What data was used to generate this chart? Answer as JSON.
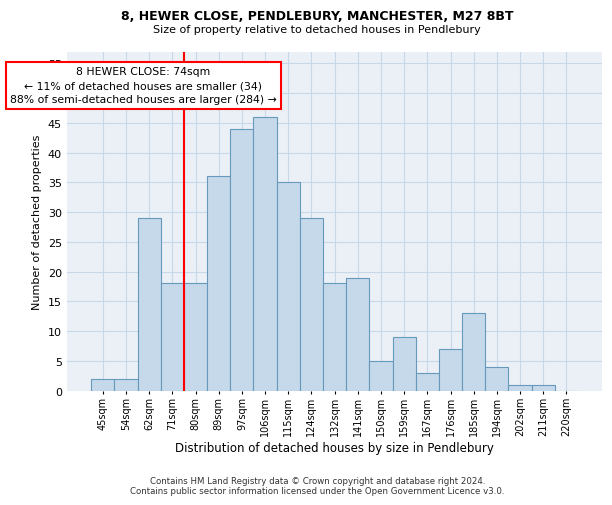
{
  "title1": "8, HEWER CLOSE, PENDLEBURY, MANCHESTER, M27 8BT",
  "title2": "Size of property relative to detached houses in Pendlebury",
  "xlabel": "Distribution of detached houses by size in Pendlebury",
  "ylabel": "Number of detached properties",
  "categories": [
    "45sqm",
    "54sqm",
    "62sqm",
    "71sqm",
    "80sqm",
    "89sqm",
    "97sqm",
    "106sqm",
    "115sqm",
    "124sqm",
    "132sqm",
    "141sqm",
    "150sqm",
    "159sqm",
    "167sqm",
    "176sqm",
    "185sqm",
    "194sqm",
    "202sqm",
    "211sqm",
    "220sqm"
  ],
  "values": [
    2,
    2,
    29,
    18,
    18,
    36,
    44,
    46,
    35,
    29,
    18,
    19,
    5,
    9,
    3,
    7,
    13,
    4,
    1,
    1,
    0
  ],
  "bar_color": "#c6d9ea",
  "bar_edge_color": "#6699bb",
  "red_line_x": 3.5,
  "annotation_line1": "8 HEWER CLOSE: 74sqm",
  "annotation_line2": "← 11% of detached houses are smaller (34)",
  "annotation_line3": "88% of semi-detached houses are larger (284) →",
  "annotation_box_color": "white",
  "annotation_box_edge_color": "red",
  "ylim": [
    0,
    57
  ],
  "yticks": [
    0,
    5,
    10,
    15,
    20,
    25,
    30,
    35,
    40,
    45,
    50,
    55
  ],
  "footer1": "Contains HM Land Registry data © Crown copyright and database right 2024.",
  "footer2": "Contains public sector information licensed under the Open Government Licence v3.0.",
  "grid_color": "#c8d8e8",
  "background_color": "#eaf0f6"
}
